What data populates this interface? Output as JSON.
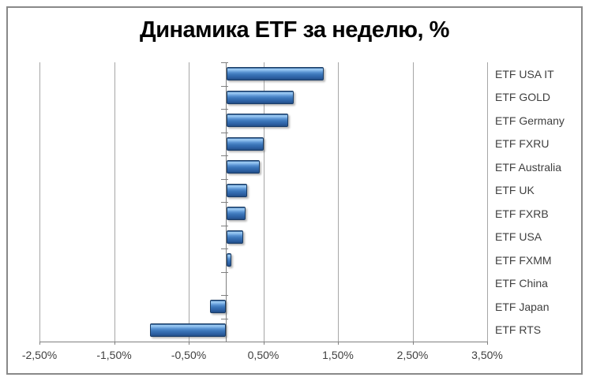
{
  "title": "Динамика ETF за неделю, %",
  "colors": {
    "background": "#FFFFFF",
    "chart_border": "#898989",
    "gridline": "#A6A6A6",
    "axis_line": "#808080",
    "text": "#3F3F3F",
    "title_text": "#000000",
    "bar_highlight": "#A4CFF4",
    "bar_main": "#3C76BA",
    "bar_border": "#1A3C64"
  },
  "chart_data": {
    "type": "bar",
    "orientation": "horizontal",
    "title": "Динамика ETF за неделю, %",
    "unit": "%",
    "decimal_separator": ",",
    "categories": [
      "ETF USA IT",
      "ETF GOLD",
      "ETF Germany",
      "ETF FXRU",
      "ETF Australia",
      "ETF UK",
      "ETF FXRB",
      "ETF USA",
      "ETF FXMM",
      "ETF China",
      "ETF Japan",
      "ETF RTS"
    ],
    "values": [
      1.3,
      0.9,
      0.82,
      0.49,
      0.44,
      0.27,
      0.25,
      0.22,
      0.06,
      0.0,
      -0.21,
      -1.02
    ],
    "x_tick_labels": [
      "-2,50%",
      "-1,50%",
      "-0,50%",
      "0,50%",
      "1,50%",
      "2,50%",
      "3,50%"
    ],
    "x_tick_values": [
      -2.5,
      -1.5,
      -0.5,
      0.5,
      1.5,
      2.5,
      3.5
    ],
    "xlim": [
      -2.5,
      3.5
    ],
    "grid": true,
    "legend": false,
    "category_labels_position": "right"
  }
}
